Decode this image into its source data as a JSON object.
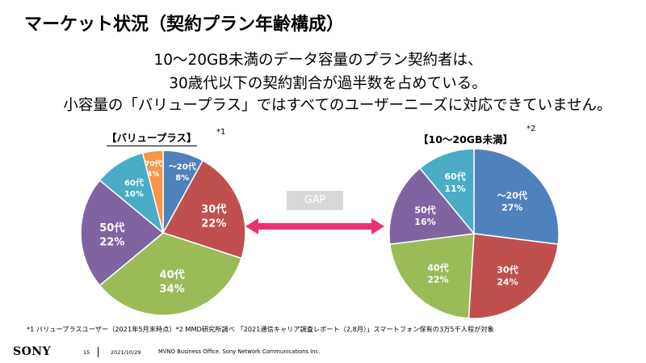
{
  "page": {
    "title": "マーケット状況（契約プラン年齢構成）",
    "subtitle_lines": [
      "10～20GB未満のデータ容量のプラン契約者は、",
      "30歳代以下の契約割合が過半数を占めている。",
      "小容量の「バリュープラス」ではすべてのユーザーニーズに対応できていません。"
    ],
    "gap_label": "GAP",
    "footnote": "*1 バリュープラスユーザー（2021年5月末時点）*2  MMD研究所調べ 「2021通信キャリア調査レポート（2,8月）」スマートフォン保有の3万5千人程が対象",
    "footer": {
      "logo": "SONY",
      "page_number": "15",
      "date": "2021/10/29",
      "office": "MVNO Business Office.   Sony Network Communications Inc."
    }
  },
  "colors": {
    "blue": "#4f81bd",
    "red": "#c0504d",
    "green": "#9bbb59",
    "purple": "#8064a2",
    "teal": "#4bacc6",
    "orange": "#f79646",
    "arrow": "#e8336f",
    "gap_bg": "#d9d9d9"
  },
  "chart_data": [
    {
      "type": "pie",
      "title": "【バリュープラス】",
      "footnote_mark": "*1",
      "categories": [
        "～20代",
        "30代",
        "40代",
        "50代",
        "60代",
        "70代"
      ],
      "values": [
        8,
        22,
        34,
        22,
        10,
        4
      ],
      "labels": [
        "8%",
        "22%",
        "34%",
        "22%",
        "10%",
        "4%"
      ],
      "colors": [
        "#4f81bd",
        "#c0504d",
        "#9bbb59",
        "#8064a2",
        "#4bacc6",
        "#f79646"
      ],
      "start": "12 o'clock",
      "direction": "clockwise"
    },
    {
      "type": "pie",
      "title": "【10～20GB未満】",
      "footnote_mark": "*2",
      "categories": [
        "～20代",
        "30代",
        "40代",
        "50代",
        "60代"
      ],
      "values": [
        27,
        24,
        22,
        16,
        11
      ],
      "labels": [
        "27%",
        "24%",
        "22%",
        "16%",
        "11%"
      ],
      "colors": [
        "#4f81bd",
        "#c0504d",
        "#9bbb59",
        "#8064a2",
        "#4bacc6"
      ],
      "start": "12 o'clock",
      "direction": "clockwise"
    }
  ]
}
